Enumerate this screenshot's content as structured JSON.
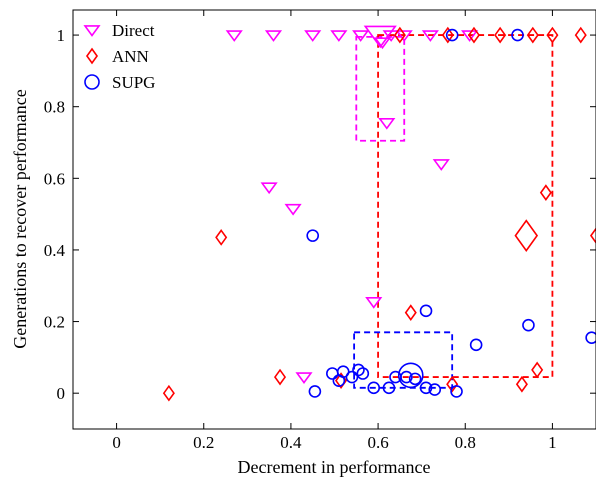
{
  "chart_data": {
    "type": "scatter",
    "title": "",
    "xlabel": "Decrement in performance",
    "ylabel": "Generations to recover performance",
    "xlim": [
      -0.1,
      1.1
    ],
    "ylim": [
      -0.1,
      1.07
    ],
    "x_ticks": [
      0,
      0.2,
      0.4,
      0.6,
      0.8,
      1
    ],
    "x_tick_labels": [
      "0",
      "0.2",
      "0.4",
      "0.6",
      "0.8",
      "1"
    ],
    "y_ticks": [
      0,
      0.2,
      0.4,
      0.6,
      0.8,
      1
    ],
    "y_tick_labels": [
      "0",
      "0.2",
      "0.4",
      "0.6",
      "0.8",
      "1"
    ],
    "grid": false,
    "legend_position": "top-left",
    "series": [
      {
        "name": "Direct",
        "marker": "triangle-down",
        "color": "#ff00ff",
        "points": [
          [
            0.27,
            1.0
          ],
          [
            0.36,
            1.0
          ],
          [
            0.45,
            1.0
          ],
          [
            0.51,
            1.0
          ],
          [
            0.56,
            1.0
          ],
          [
            0.63,
            1.0
          ],
          [
            0.66,
            1.0
          ],
          [
            0.72,
            1.0
          ],
          [
            0.81,
            1.0
          ],
          [
            0.61,
            0.98
          ],
          [
            0.62,
            0.755
          ],
          [
            0.745,
            0.64
          ],
          [
            0.35,
            0.575
          ],
          [
            0.405,
            0.515
          ],
          [
            0.59,
            0.255
          ],
          [
            0.43,
            0.045
          ]
        ],
        "summary": {
          "center": [
            0.605,
            1.0
          ],
          "box_x": [
            0.55,
            0.66
          ],
          "box_y": [
            0.705,
            0.995
          ]
        }
      },
      {
        "name": "ANN",
        "marker": "diamond",
        "color": "#ff0000",
        "points": [
          [
            0.65,
            1.0
          ],
          [
            0.76,
            1.0
          ],
          [
            0.82,
            1.0
          ],
          [
            0.88,
            1.0
          ],
          [
            0.955,
            1.0
          ],
          [
            1.0,
            1.0
          ],
          [
            1.065,
            1.0
          ],
          [
            0.985,
            0.56
          ],
          [
            1.1,
            0.44
          ],
          [
            0.24,
            0.435
          ],
          [
            0.675,
            0.225
          ],
          [
            0.965,
            0.065
          ],
          [
            0.375,
            0.045
          ],
          [
            0.515,
            0.035
          ],
          [
            0.77,
            0.025
          ],
          [
            0.93,
            0.025
          ],
          [
            0.12,
            0.0
          ]
        ],
        "summary": {
          "center": [
            0.94,
            0.44
          ],
          "box_x": [
            0.6,
            1.0
          ],
          "box_y": [
            0.045,
            1.0
          ]
        }
      },
      {
        "name": "SUPG",
        "marker": "circle",
        "color": "#0000ff",
        "points": [
          [
            0.77,
            1.0
          ],
          [
            0.92,
            1.0
          ],
          [
            0.45,
            0.44
          ],
          [
            0.71,
            0.23
          ],
          [
            0.945,
            0.19
          ],
          [
            1.09,
            0.155
          ],
          [
            0.825,
            0.135
          ],
          [
            0.555,
            0.065
          ],
          [
            0.52,
            0.06
          ],
          [
            0.565,
            0.055
          ],
          [
            0.495,
            0.055
          ],
          [
            0.54,
            0.045
          ],
          [
            0.64,
            0.045
          ],
          [
            0.665,
            0.045
          ],
          [
            0.685,
            0.04
          ],
          [
            0.51,
            0.035
          ],
          [
            0.59,
            0.015
          ],
          [
            0.625,
            0.015
          ],
          [
            0.71,
            0.015
          ],
          [
            0.73,
            0.01
          ],
          [
            0.78,
            0.005
          ],
          [
            0.455,
            0.005
          ]
        ],
        "summary": {
          "center": [
            0.675,
            0.05
          ],
          "box_x": [
            0.545,
            0.77
          ],
          "box_y": [
            0.015,
            0.17
          ]
        }
      }
    ]
  }
}
